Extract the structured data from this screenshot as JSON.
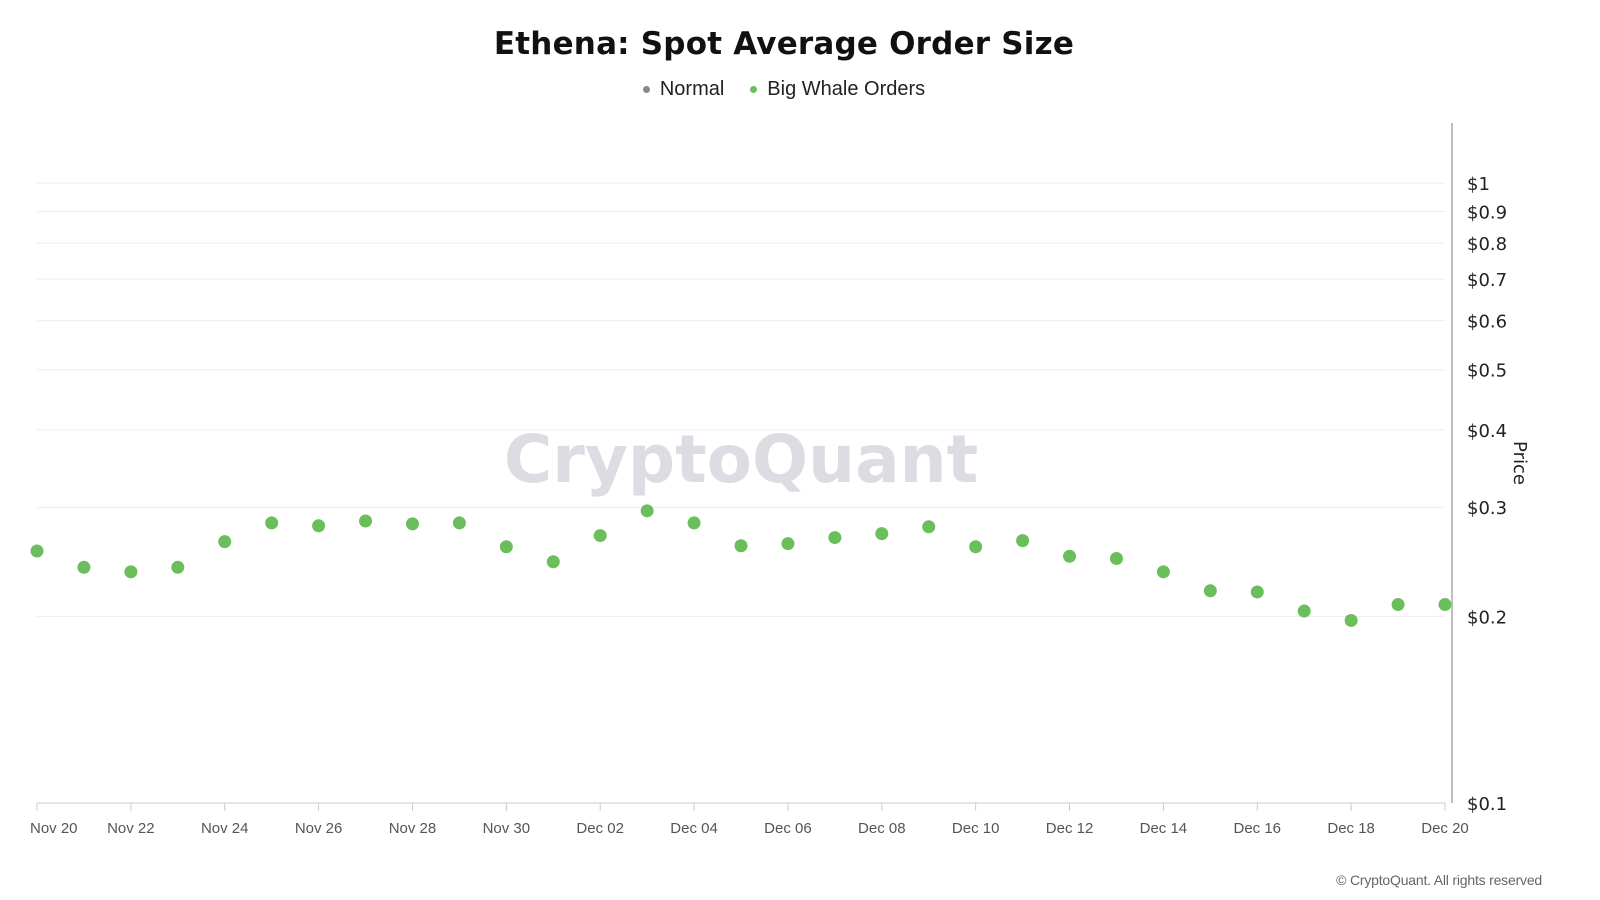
{
  "chart_data": {
    "type": "scatter",
    "title": "Ethena: Spot Average Order Size",
    "ylabel": "Price",
    "yscale": "log",
    "ylim": [
      0.1,
      1.25
    ],
    "xlim": [
      "2024-11-20",
      "2024-12-20"
    ],
    "grid": true,
    "legend_position": "top-center",
    "legend": [
      {
        "name": "Normal",
        "color": "#888888"
      },
      {
        "name": "Big Whale Orders",
        "color": "#6abf5c"
      }
    ],
    "y_ticks": [
      {
        "value": 1,
        "label": "$1"
      },
      {
        "value": 0.9,
        "label": "$0.9"
      },
      {
        "value": 0.8,
        "label": "$0.8"
      },
      {
        "value": 0.7,
        "label": "$0.7"
      },
      {
        "value": 0.6,
        "label": "$0.6"
      },
      {
        "value": 0.5,
        "label": "$0.5"
      },
      {
        "value": 0.4,
        "label": "$0.4"
      },
      {
        "value": 0.3,
        "label": "$0.3"
      },
      {
        "value": 0.2,
        "label": "$0.2"
      },
      {
        "value": 0.1,
        "label": "$0.1"
      }
    ],
    "x_ticks": [
      {
        "date": "2024-11-20",
        "label": "Nov 20"
      },
      {
        "date": "2024-11-22",
        "label": "Nov 22"
      },
      {
        "date": "2024-11-24",
        "label": "Nov 24"
      },
      {
        "date": "2024-11-26",
        "label": "Nov 26"
      },
      {
        "date": "2024-11-28",
        "label": "Nov 28"
      },
      {
        "date": "2024-11-30",
        "label": "Nov 30"
      },
      {
        "date": "2024-12-02",
        "label": "Dec 02"
      },
      {
        "date": "2024-12-04",
        "label": "Dec 04"
      },
      {
        "date": "2024-12-06",
        "label": "Dec 06"
      },
      {
        "date": "2024-12-08",
        "label": "Dec 08"
      },
      {
        "date": "2024-12-10",
        "label": "Dec 10"
      },
      {
        "date": "2024-12-12",
        "label": "Dec 12"
      },
      {
        "date": "2024-12-14",
        "label": "Dec 14"
      },
      {
        "date": "2024-12-16",
        "label": "Dec 16"
      },
      {
        "date": "2024-12-18",
        "label": "Dec 18"
      },
      {
        "date": "2024-12-20",
        "label": "Dec 20"
      }
    ],
    "series": [
      {
        "name": "Big Whale Orders",
        "color": "#6abf5c",
        "points": [
          {
            "x": "2024-11-20",
            "y": 0.255
          },
          {
            "x": "2024-11-21",
            "y": 0.24
          },
          {
            "x": "2024-11-22",
            "y": 0.236
          },
          {
            "x": "2024-11-23",
            "y": 0.24
          },
          {
            "x": "2024-11-24",
            "y": 0.264
          },
          {
            "x": "2024-11-25",
            "y": 0.283
          },
          {
            "x": "2024-11-26",
            "y": 0.28
          },
          {
            "x": "2024-11-27",
            "y": 0.285
          },
          {
            "x": "2024-11-28",
            "y": 0.282
          },
          {
            "x": "2024-11-29",
            "y": 0.283
          },
          {
            "x": "2024-11-30",
            "y": 0.259
          },
          {
            "x": "2024-12-01",
            "y": 0.245
          },
          {
            "x": "2024-12-02",
            "y": 0.27
          },
          {
            "x": "2024-12-03",
            "y": 0.296
          },
          {
            "x": "2024-12-04",
            "y": 0.283
          },
          {
            "x": "2024-12-05",
            "y": 0.26
          },
          {
            "x": "2024-12-06",
            "y": 0.262
          },
          {
            "x": "2024-12-07",
            "y": 0.268
          },
          {
            "x": "2024-12-08",
            "y": 0.272
          },
          {
            "x": "2024-12-09",
            "y": 0.279
          },
          {
            "x": "2024-12-10",
            "y": 0.259
          },
          {
            "x": "2024-12-11",
            "y": 0.265
          },
          {
            "x": "2024-12-12",
            "y": 0.25
          },
          {
            "x": "2024-12-13",
            "y": 0.248
          },
          {
            "x": "2024-12-14",
            "y": 0.236
          },
          {
            "x": "2024-12-15",
            "y": 0.22
          },
          {
            "x": "2024-12-16",
            "y": 0.219
          },
          {
            "x": "2024-12-17",
            "y": 0.204
          },
          {
            "x": "2024-12-18",
            "y": 0.197
          },
          {
            "x": "2024-12-19",
            "y": 0.209
          },
          {
            "x": "2024-12-20",
            "y": 0.209
          }
        ]
      }
    ],
    "watermark": "CryptoQuant",
    "footer": "© CryptoQuant. All rights reserved"
  }
}
